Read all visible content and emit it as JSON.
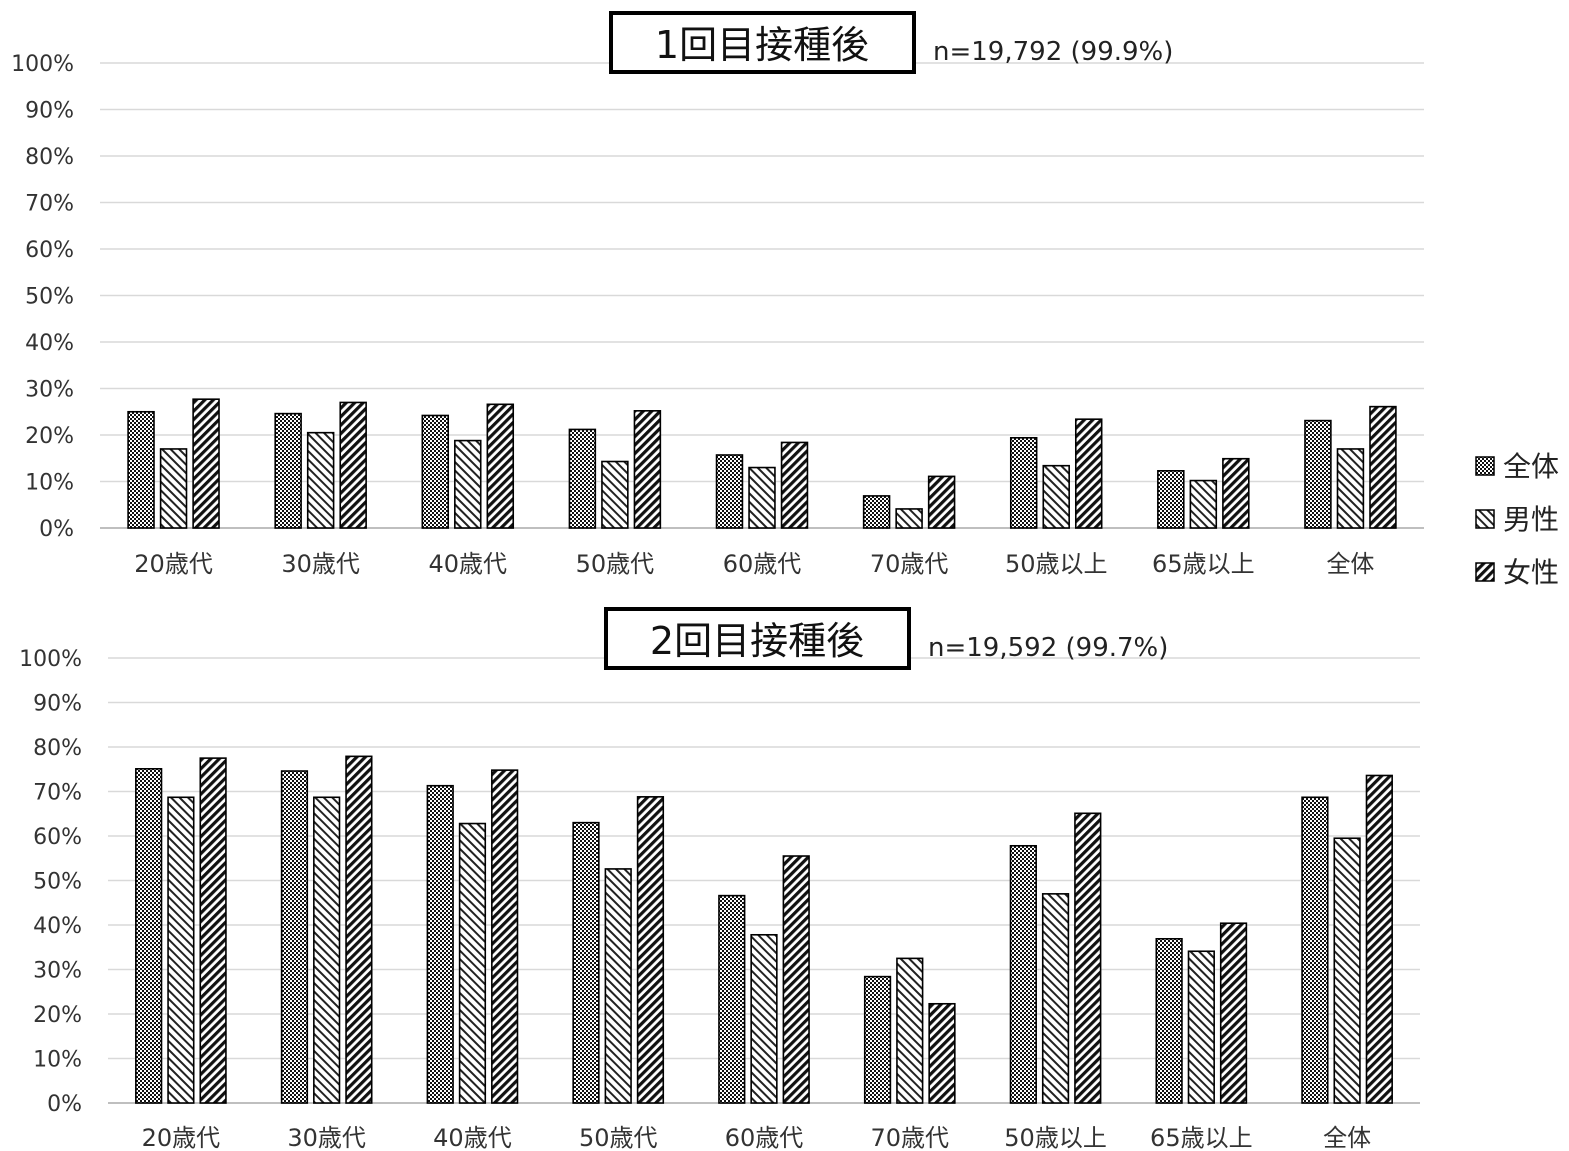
{
  "legend": [
    {
      "label": "全体",
      "pattern": "dots"
    },
    {
      "label": "男性",
      "pattern": "hatch-back"
    },
    {
      "label": "女性",
      "pattern": "hatch-fwd"
    }
  ],
  "chart_data": [
    {
      "type": "bar",
      "title": "1回目接種後",
      "subtitle": "n=19,792 (99.9%)",
      "categories": [
        "20歳代",
        "30歳代",
        "40歳代",
        "50歳代",
        "60歳代",
        "70歳代",
        "50歳以上",
        "65歳以上",
        "全体"
      ],
      "series": [
        {
          "name": "全体",
          "values": [
            25,
            24.6,
            24.2,
            21.2,
            15.7,
            6.9,
            19.4,
            12.3,
            23.1
          ]
        },
        {
          "name": "男性",
          "values": [
            17,
            20.5,
            18.8,
            14.3,
            13,
            4.1,
            13.4,
            10.2,
            17
          ]
        },
        {
          "name": "女性",
          "values": [
            27.7,
            27,
            26.6,
            25.2,
            18.4,
            11.1,
            23.4,
            14.9,
            26.1
          ]
        }
      ],
      "ylim": [
        0,
        100
      ],
      "yticks": [
        "0%",
        "10%",
        "20%",
        "30%",
        "40%",
        "50%",
        "60%",
        "70%",
        "80%",
        "90%",
        "100%"
      ],
      "grid": true,
      "legend_position": "right"
    },
    {
      "type": "bar",
      "title": "2回目接種後",
      "subtitle": "n=19,592 (99.7%)",
      "categories": [
        "20歳代",
        "30歳代",
        "40歳代",
        "50歳代",
        "60歳代",
        "70歳代",
        "50歳以上",
        "65歳以上",
        "全体"
      ],
      "series": [
        {
          "name": "全体",
          "values": [
            75.1,
            74.6,
            71.3,
            63,
            46.6,
            28.4,
            57.8,
            36.9,
            68.7
          ]
        },
        {
          "name": "男性",
          "values": [
            68.7,
            68.7,
            62.8,
            52.6,
            37.8,
            32.5,
            47,
            34.1,
            59.5
          ]
        },
        {
          "name": "女性",
          "values": [
            77.5,
            77.9,
            74.8,
            68.8,
            55.5,
            22.3,
            65.1,
            40.4,
            73.6
          ]
        }
      ],
      "ylim": [
        0,
        100
      ],
      "yticks": [
        "0%",
        "10%",
        "20%",
        "30%",
        "40%",
        "50%",
        "60%",
        "70%",
        "80%",
        "90%",
        "100%"
      ],
      "grid": true,
      "legend_position": "right"
    }
  ]
}
